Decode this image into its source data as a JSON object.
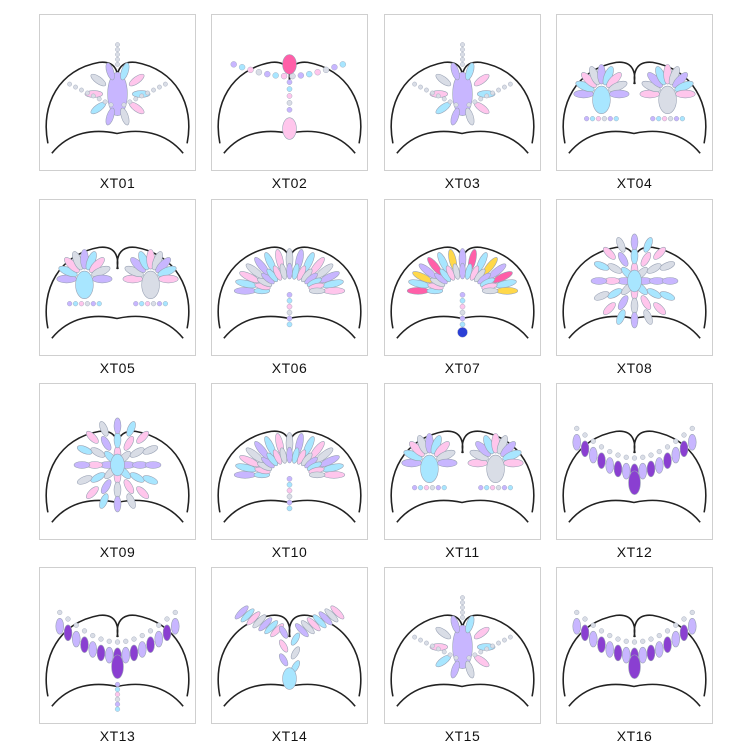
{
  "products": [
    {
      "code": "XT01",
      "style": "center-drop"
    },
    {
      "code": "XT02",
      "style": "necklace-drop"
    },
    {
      "code": "XT03",
      "style": "star-burst"
    },
    {
      "code": "XT04",
      "style": "twin-lotus"
    },
    {
      "code": "XT05",
      "style": "twin-oval"
    },
    {
      "code": "XT06",
      "style": "fan"
    },
    {
      "code": "XT07",
      "style": "fan-colorful"
    },
    {
      "code": "XT08",
      "style": "center-cluster"
    },
    {
      "code": "XT09",
      "style": "center-cluster"
    },
    {
      "code": "XT10",
      "style": "fan-drop"
    },
    {
      "code": "XT11",
      "style": "twin-lotus"
    },
    {
      "code": "XT12",
      "style": "purple-necklace"
    },
    {
      "code": "XT13",
      "style": "purple-drops"
    },
    {
      "code": "XT14",
      "style": "wings-drop"
    },
    {
      "code": "XT15",
      "style": "star-burst"
    },
    {
      "code": "XT16",
      "style": "purple-necklace"
    }
  ],
  "colors": {
    "crystal": "#d9dde6",
    "crystal_edge": "#9aa3b5",
    "iridescent_a": "#c8b6ff",
    "iridescent_b": "#a8e6ff",
    "iridescent_c": "#ffc6ec",
    "purple": "#8a3fd1",
    "pink": "#ff5fa8",
    "outline": "#222222",
    "watermark": "#e9e9ee"
  }
}
